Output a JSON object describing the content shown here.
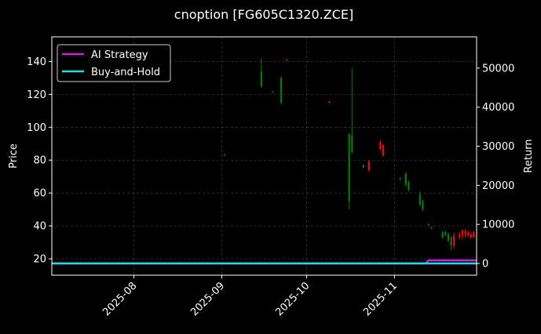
{
  "chart_data": {
    "type": "candlestick",
    "title": "cnoption [FG605C1320.ZCE]",
    "ylabel_left": "Price",
    "ylabel_right": "Return",
    "x_domain": [
      "2025-07-03",
      "2025-11-30"
    ],
    "ylim_left": [
      10,
      155
    ],
    "ylim_right": [
      -3000,
      58000
    ],
    "x_ticks": [
      {
        "date": "2025-08-01",
        "label": "2025-08"
      },
      {
        "date": "2025-09-01",
        "label": "2025-09"
      },
      {
        "date": "2025-10-01",
        "label": "2025-10"
      },
      {
        "date": "2025-11-01",
        "label": "2025-11"
      }
    ],
    "y_ticks_left": [
      20,
      40,
      60,
      80,
      100,
      120,
      140
    ],
    "y_ticks_right": [
      0,
      10000,
      20000,
      30000,
      40000,
      50000
    ],
    "grid": true,
    "legend_position": "top-left",
    "colors": {
      "background": "#000000",
      "up": "#ff0000",
      "down": "#008000",
      "ai_strategy": "#cc22dd",
      "buy_and_hold": "#22dddd",
      "grid": "#444444",
      "text": "#ffffff"
    },
    "candles": [
      {
        "date": "2025-09-02",
        "open": 83.5,
        "high": 83.5,
        "low": 82.5,
        "close": 83
      },
      {
        "date": "2025-09-15",
        "open": 134,
        "high": 142,
        "low": 124,
        "close": 125
      },
      {
        "date": "2025-09-19",
        "open": 121.5,
        "high": 122,
        "low": 121,
        "close": 121.3
      },
      {
        "date": "2025-09-22",
        "open": 130,
        "high": 131,
        "low": 114,
        "close": 115
      },
      {
        "date": "2025-09-24",
        "open": 141,
        "high": 141.5,
        "low": 140.5,
        "close": 141.2
      },
      {
        "date": "2025-10-09",
        "open": 115,
        "high": 116,
        "low": 114.5,
        "close": 115.5
      },
      {
        "date": "2025-10-16",
        "open": 96,
        "high": 96,
        "low": 50,
        "close": 55
      },
      {
        "date": "2025-10-17",
        "open": 95,
        "high": 136,
        "low": 84,
        "close": 85
      },
      {
        "date": "2025-10-21",
        "open": 77,
        "high": 77.5,
        "low": 75,
        "close": 75.5
      },
      {
        "date": "2025-10-23",
        "open": 74,
        "high": 80,
        "low": 73,
        "close": 79
      },
      {
        "date": "2025-10-27",
        "open": 87,
        "high": 92,
        "low": 86,
        "close": 91
      },
      {
        "date": "2025-10-28",
        "open": 83,
        "high": 90,
        "low": 82,
        "close": 89
      },
      {
        "date": "2025-11-03",
        "open": 68.5,
        "high": 69.5,
        "low": 68,
        "close": 68.2
      },
      {
        "date": "2025-11-05",
        "open": 72,
        "high": 72.5,
        "low": 64,
        "close": 65
      },
      {
        "date": "2025-11-06",
        "open": 67,
        "high": 67.5,
        "low": 61,
        "close": 62
      },
      {
        "date": "2025-11-10",
        "open": 59,
        "high": 61,
        "low": 52,
        "close": 53
      },
      {
        "date": "2025-11-11",
        "open": 55,
        "high": 56,
        "low": 49,
        "close": 50
      },
      {
        "date": "2025-11-13",
        "open": 41,
        "high": 41.5,
        "low": 40,
        "close": 40.5
      },
      {
        "date": "2025-11-14",
        "open": 39,
        "high": 39.5,
        "low": 38,
        "close": 38.5
      },
      {
        "date": "2025-11-18",
        "open": 36,
        "high": 37,
        "low": 32,
        "close": 33
      },
      {
        "date": "2025-11-19",
        "open": 36.5,
        "high": 37,
        "low": 34,
        "close": 34.5
      },
      {
        "date": "2025-11-20",
        "open": 35,
        "high": 36,
        "low": 30,
        "close": 31
      },
      {
        "date": "2025-11-21",
        "open": 33,
        "high": 34,
        "low": 25,
        "close": 28
      },
      {
        "date": "2025-11-22",
        "open": 28,
        "high": 36,
        "low": 26,
        "close": 34
      },
      {
        "date": "2025-11-24",
        "open": 33,
        "high": 36,
        "low": 32,
        "close": 35
      },
      {
        "date": "2025-11-25",
        "open": 34,
        "high": 38,
        "low": 32,
        "close": 37
      },
      {
        "date": "2025-11-26",
        "open": 35,
        "high": 38,
        "low": 33,
        "close": 37
      },
      {
        "date": "2025-11-27",
        "open": 34,
        "high": 37,
        "low": 34,
        "close": 36
      },
      {
        "date": "2025-11-28",
        "open": 33,
        "high": 36,
        "low": 32,
        "close": 35
      },
      {
        "date": "2025-11-29",
        "open": 33,
        "high": 37,
        "low": 33,
        "close": 36
      }
    ],
    "series": [
      {
        "name": "AI Strategy",
        "axis": "right",
        "points": [
          {
            "date": "2025-07-03",
            "value": 0
          },
          {
            "date": "2025-11-12",
            "value": 0
          },
          {
            "date": "2025-11-13",
            "value": 800
          },
          {
            "date": "2025-11-30",
            "value": 800
          }
        ]
      },
      {
        "name": "Buy-and-Hold",
        "axis": "right",
        "points": [
          {
            "date": "2025-07-03",
            "value": 0
          },
          {
            "date": "2025-11-30",
            "value": 0
          }
        ]
      }
    ]
  }
}
